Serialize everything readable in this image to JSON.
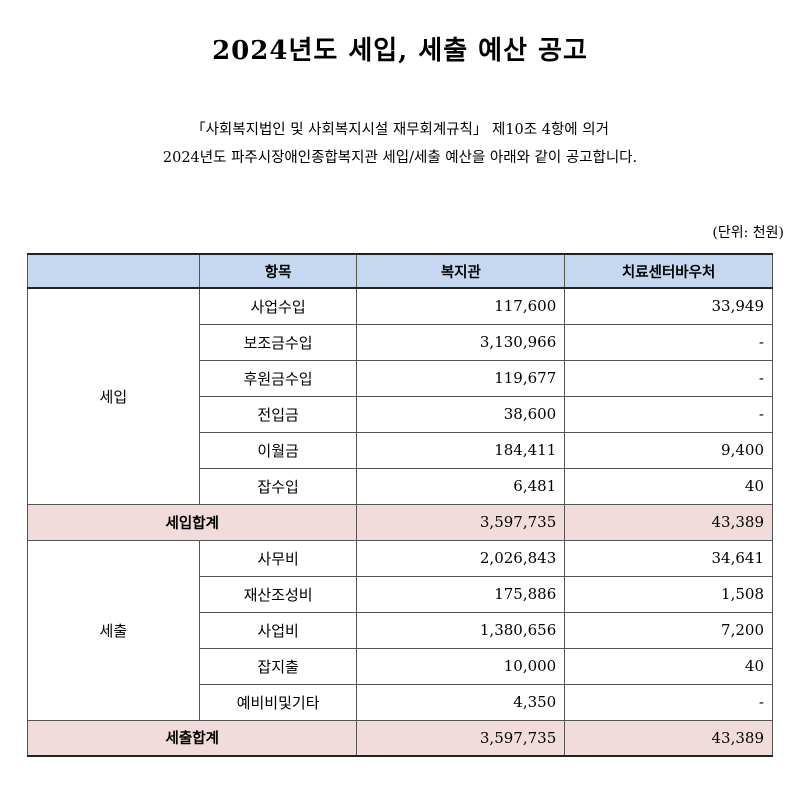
{
  "title": "2024년도 세입, 세출 예산 공고",
  "intro": {
    "line1": "「사회복지법인 및 사회복지시설 재무회계규칙」 제10조 4항에 의거",
    "line2": "2024년도 파주시장애인종합복지관 세입/세출 예산을 아래와 같이 공고합니다."
  },
  "unit_note": "(단위: 천원)",
  "table": {
    "headers": [
      "",
      "항목",
      "복지관",
      "치료센터바우처"
    ],
    "revenue": {
      "group": "세입",
      "rows": [
        {
          "item": "사업수입",
          "welfare": "117,600",
          "voucher": "33,949"
        },
        {
          "item": "보조금수입",
          "welfare": "3,130,966",
          "voucher": "-"
        },
        {
          "item": "후원금수입",
          "welfare": "119,677",
          "voucher": "-"
        },
        {
          "item": "전입금",
          "welfare": "38,600",
          "voucher": "-"
        },
        {
          "item": "이월금",
          "welfare": "184,411",
          "voucher": "9,400"
        },
        {
          "item": "잡수입",
          "welfare": "6,481",
          "voucher": "40"
        }
      ],
      "total": {
        "label": "세입합계",
        "welfare": "3,597,735",
        "voucher": "43,389"
      }
    },
    "expenditure": {
      "group": "세출",
      "rows": [
        {
          "item": "사무비",
          "welfare": "2,026,843",
          "voucher": "34,641"
        },
        {
          "item": "재산조성비",
          "welfare": "175,886",
          "voucher": "1,508"
        },
        {
          "item": "사업비",
          "welfare": "1,380,656",
          "voucher": "7,200"
        },
        {
          "item": "잡지출",
          "welfare": "10,000",
          "voucher": "40"
        },
        {
          "item": "예비비및기타",
          "welfare": "4,350",
          "voucher": "-"
        }
      ],
      "total": {
        "label": "세출합계",
        "welfare": "3,597,735",
        "voucher": "43,389"
      }
    }
  }
}
